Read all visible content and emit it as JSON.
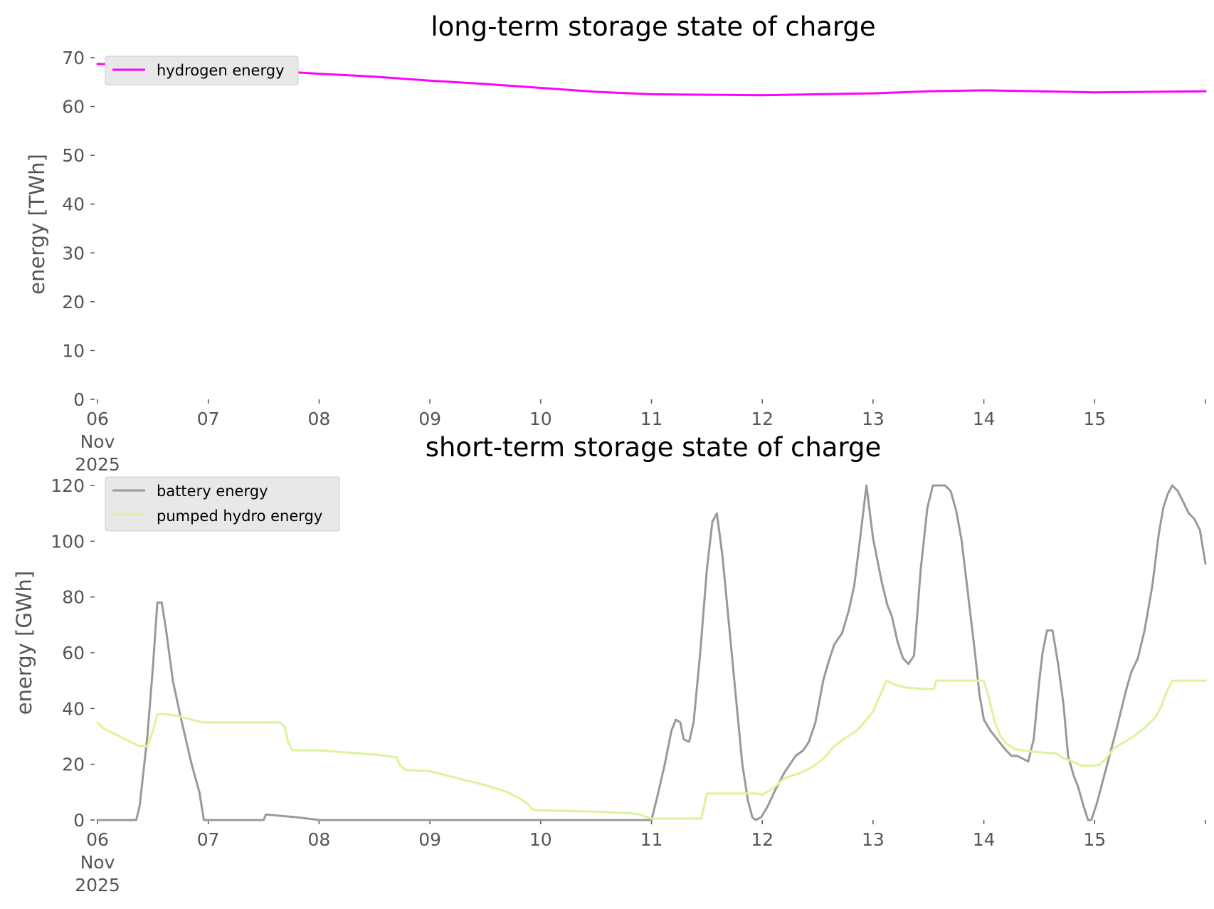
{
  "chart_data": [
    {
      "type": "line",
      "title": "long-term storage state of charge",
      "ylabel": "energy [TWh]",
      "xlabel": "",
      "ylim": [
        0,
        70
      ],
      "yticks": [
        0,
        10,
        20,
        30,
        40,
        50,
        60,
        70
      ],
      "xlim": [
        0,
        10
      ],
      "xticks": [
        {
          "x": 0,
          "label": [
            "06",
            "Nov",
            "2025"
          ]
        },
        {
          "x": 1,
          "label": [
            "07"
          ]
        },
        {
          "x": 2,
          "label": [
            "08"
          ]
        },
        {
          "x": 3,
          "label": [
            "09"
          ]
        },
        {
          "x": 4,
          "label": [
            "10"
          ]
        },
        {
          "x": 5,
          "label": [
            "11"
          ]
        },
        {
          "x": 6,
          "label": [
            "12"
          ]
        },
        {
          "x": 7,
          "label": [
            "13"
          ]
        },
        {
          "x": 8,
          "label": [
            "14"
          ]
        },
        {
          "x": 9,
          "label": [
            "15"
          ]
        }
      ],
      "x_unit": "days since 06 Nov 2025",
      "grid": false,
      "legend": "top-left",
      "series": [
        {
          "name": "hydrogen energy",
          "color": "#ff00ff",
          "points": [
            [
              0,
              68.7
            ],
            [
              0.5,
              68.5
            ],
            [
              1,
              68.0
            ],
            [
              1.5,
              67.4
            ],
            [
              2,
              66.7
            ],
            [
              2.5,
              66.1
            ],
            [
              3,
              65.3
            ],
            [
              3.5,
              64.6
            ],
            [
              4,
              63.8
            ],
            [
              4.5,
              63.0
            ],
            [
              5,
              62.5
            ],
            [
              5.5,
              62.4
            ],
            [
              6,
              62.3
            ],
            [
              6.5,
              62.5
            ],
            [
              7,
              62.7
            ],
            [
              7.5,
              63.1
            ],
            [
              8,
              63.3
            ],
            [
              8.5,
              63.1
            ],
            [
              9,
              62.9
            ],
            [
              9.5,
              63.0
            ],
            [
              10,
              63.1
            ]
          ]
        }
      ]
    },
    {
      "type": "line",
      "title": "short-term storage state of charge",
      "ylabel": "energy [GWh]",
      "xlabel": "",
      "ylim": [
        0,
        120
      ],
      "yticks": [
        0,
        20,
        40,
        60,
        80,
        100,
        120
      ],
      "xlim": [
        0,
        10
      ],
      "xticks": [
        {
          "x": 0,
          "label": [
            "06",
            "Nov",
            "2025"
          ]
        },
        {
          "x": 1,
          "label": [
            "07"
          ]
        },
        {
          "x": 2,
          "label": [
            "08"
          ]
        },
        {
          "x": 3,
          "label": [
            "09"
          ]
        },
        {
          "x": 4,
          "label": [
            "10"
          ]
        },
        {
          "x": 5,
          "label": [
            "11"
          ]
        },
        {
          "x": 6,
          "label": [
            "12"
          ]
        },
        {
          "x": 7,
          "label": [
            "13"
          ]
        },
        {
          "x": 8,
          "label": [
            "14"
          ]
        },
        {
          "x": 9,
          "label": [
            "15"
          ]
        }
      ],
      "x_unit": "days since 06 Nov 2025",
      "grid": false,
      "legend": "top-left",
      "series": [
        {
          "name": "battery energy",
          "color": "#999999",
          "points": [
            [
              0,
              0
            ],
            [
              0.35,
              0
            ],
            [
              0.38,
              5
            ],
            [
              0.45,
              30
            ],
            [
              0.5,
              55
            ],
            [
              0.54,
              78
            ],
            [
              0.58,
              78
            ],
            [
              0.62,
              68
            ],
            [
              0.68,
              50
            ],
            [
              0.75,
              37
            ],
            [
              0.85,
              20
            ],
            [
              0.92,
              10
            ],
            [
              0.96,
              0
            ],
            [
              1.5,
              0
            ],
            [
              1.52,
              2
            ],
            [
              1.65,
              1.5
            ],
            [
              1.8,
              1
            ],
            [
              2,
              0
            ],
            [
              5,
              0
            ],
            [
              5.05,
              8
            ],
            [
              5.12,
              20
            ],
            [
              5.18,
              32
            ],
            [
              5.22,
              36
            ],
            [
              5.26,
              35
            ],
            [
              5.29,
              29
            ],
            [
              5.34,
              28
            ],
            [
              5.38,
              35
            ],
            [
              5.44,
              60
            ],
            [
              5.5,
              90
            ],
            [
              5.55,
              107
            ],
            [
              5.59,
              110
            ],
            [
              5.64,
              95
            ],
            [
              5.7,
              70
            ],
            [
              5.76,
              45
            ],
            [
              5.82,
              20
            ],
            [
              5.87,
              7
            ],
            [
              5.91,
              1
            ],
            [
              5.94,
              0
            ],
            [
              5.99,
              1
            ],
            [
              6.05,
              5
            ],
            [
              6.12,
              11
            ],
            [
              6.2,
              17
            ],
            [
              6.3,
              23
            ],
            [
              6.37,
              25
            ],
            [
              6.42,
              28
            ],
            [
              6.48,
              35
            ],
            [
              6.55,
              50
            ],
            [
              6.6,
              57
            ],
            [
              6.65,
              63
            ],
            [
              6.72,
              67
            ],
            [
              6.78,
              75
            ],
            [
              6.83,
              84
            ],
            [
              6.88,
              100
            ],
            [
              6.94,
              120
            ],
            [
              7.0,
              101
            ],
            [
              7.08,
              85
            ],
            [
              7.13,
              77
            ],
            [
              7.17,
              73
            ],
            [
              7.22,
              64
            ],
            [
              7.27,
              58
            ],
            [
              7.32,
              56
            ],
            [
              7.37,
              59
            ],
            [
              7.43,
              90
            ],
            [
              7.49,
              112
            ],
            [
              7.54,
              120
            ],
            [
              7.65,
              120
            ],
            [
              7.7,
              118
            ],
            [
              7.75,
              111
            ],
            [
              7.8,
              100
            ],
            [
              7.86,
              80
            ],
            [
              7.92,
              60
            ],
            [
              7.96,
              45
            ],
            [
              8.0,
              36
            ],
            [
              8.06,
              32
            ],
            [
              8.12,
              29
            ],
            [
              8.2,
              25
            ],
            [
              8.25,
              23
            ],
            [
              8.3,
              23
            ],
            [
              8.35,
              22
            ],
            [
              8.4,
              21
            ],
            [
              8.45,
              29
            ],
            [
              8.5,
              50
            ],
            [
              8.53,
              60
            ],
            [
              8.57,
              68
            ],
            [
              8.62,
              68
            ],
            [
              8.67,
              56
            ],
            [
              8.72,
              41
            ],
            [
              8.76,
              23
            ],
            [
              8.81,
              16
            ],
            [
              8.85,
              12
            ],
            [
              8.9,
              5
            ],
            [
              8.94,
              0
            ],
            [
              8.97,
              0
            ],
            [
              9.02,
              6
            ],
            [
              9.1,
              18
            ],
            [
              9.2,
              33
            ],
            [
              9.28,
              46
            ],
            [
              9.33,
              53
            ],
            [
              9.39,
              58
            ],
            [
              9.45,
              68
            ],
            [
              9.52,
              84
            ],
            [
              9.58,
              103
            ],
            [
              9.62,
              112
            ],
            [
              9.66,
              117
            ],
            [
              9.7,
              120
            ],
            [
              9.75,
              118
            ],
            [
              9.8,
              114
            ],
            [
              9.85,
              110
            ],
            [
              9.9,
              108
            ],
            [
              9.95,
              104
            ],
            [
              10.0,
              92
            ]
          ]
        },
        {
          "name": "pumped hydro energy",
          "color": "#d9f59b",
          "points": [
            [
              0,
              35
            ],
            [
              0.05,
              33
            ],
            [
              0.15,
              31
            ],
            [
              0.3,
              28
            ],
            [
              0.38,
              26.5
            ],
            [
              0.42,
              26.5
            ],
            [
              0.45,
              26.5
            ],
            [
              0.5,
              32
            ],
            [
              0.54,
              38
            ],
            [
              0.6,
              38
            ],
            [
              0.7,
              37.5
            ],
            [
              0.85,
              36
            ],
            [
              0.95,
              35
            ],
            [
              1.0,
              35
            ],
            [
              1.6,
              35
            ],
            [
              1.65,
              35
            ],
            [
              1.69,
              33.5
            ],
            [
              1.72,
              28
            ],
            [
              1.76,
              25
            ],
            [
              2.0,
              25
            ],
            [
              2.5,
              23.5
            ],
            [
              2.7,
              22.5
            ],
            [
              2.73,
              19.5
            ],
            [
              2.78,
              18
            ],
            [
              3.0,
              17.5
            ],
            [
              3.2,
              15.5
            ],
            [
              3.5,
              12.5
            ],
            [
              3.7,
              10
            ],
            [
              3.8,
              8
            ],
            [
              3.88,
              6
            ],
            [
              3.92,
              4
            ],
            [
              3.95,
              3.5
            ],
            [
              4.5,
              3
            ],
            [
              4.8,
              2.5
            ],
            [
              4.9,
              2
            ],
            [
              4.96,
              1
            ],
            [
              5.0,
              0.5
            ],
            [
              5.45,
              0.5
            ],
            [
              5.5,
              9.5
            ],
            [
              5.96,
              9.5
            ],
            [
              6.0,
              9
            ],
            [
              6.1,
              11.5
            ],
            [
              6.2,
              15
            ],
            [
              6.35,
              17
            ],
            [
              6.45,
              19
            ],
            [
              6.55,
              22
            ],
            [
              6.65,
              26.5
            ],
            [
              6.75,
              29.5
            ],
            [
              6.85,
              32
            ],
            [
              6.92,
              35
            ],
            [
              7.0,
              39
            ],
            [
              7.05,
              43.5
            ],
            [
              7.09,
              47
            ],
            [
              7.12,
              50
            ],
            [
              7.2,
              48.5
            ],
            [
              7.3,
              47.5
            ],
            [
              7.45,
              47
            ],
            [
              7.5,
              47
            ],
            [
              7.55,
              47
            ],
            [
              7.57,
              50
            ],
            [
              8.0,
              50
            ],
            [
              8.05,
              43
            ],
            [
              8.1,
              35
            ],
            [
              8.15,
              30
            ],
            [
              8.2,
              27.5
            ],
            [
              8.28,
              25.5
            ],
            [
              8.35,
              25
            ],
            [
              8.45,
              24.5
            ],
            [
              8.6,
              24
            ],
            [
              8.65,
              24
            ],
            [
              8.7,
              22.5
            ],
            [
              8.8,
              21
            ],
            [
              8.88,
              19.5
            ],
            [
              9.0,
              19.5
            ],
            [
              9.05,
              20
            ],
            [
              9.1,
              22
            ],
            [
              9.18,
              26
            ],
            [
              9.25,
              27.5
            ],
            [
              9.35,
              30
            ],
            [
              9.45,
              33
            ],
            [
              9.55,
              37
            ],
            [
              9.6,
              40.5
            ],
            [
              9.65,
              46
            ],
            [
              9.7,
              50
            ],
            [
              10.0,
              50
            ]
          ]
        }
      ]
    }
  ]
}
